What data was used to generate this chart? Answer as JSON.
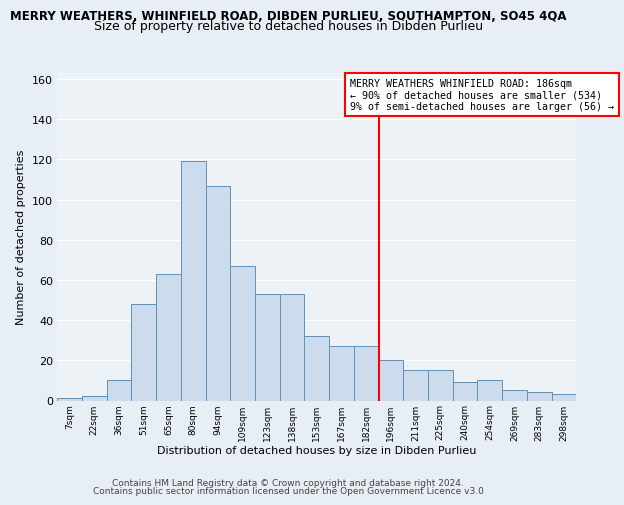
{
  "title": "MERRY WEATHERS, WHINFIELD ROAD, DIBDEN PURLIEU, SOUTHAMPTON, SO45 4QA",
  "subtitle": "Size of property relative to detached houses in Dibden Purlieu",
  "xlabel": "Distribution of detached houses by size in Dibden Purlieu",
  "ylabel": "Number of detached properties",
  "bin_labels": [
    "7sqm",
    "22sqm",
    "36sqm",
    "51sqm",
    "65sqm",
    "80sqm",
    "94sqm",
    "109sqm",
    "123sqm",
    "138sqm",
    "153sqm",
    "167sqm",
    "182sqm",
    "196sqm",
    "211sqm",
    "225sqm",
    "240sqm",
    "254sqm",
    "269sqm",
    "283sqm",
    "298sqm"
  ],
  "bar_values": [
    1,
    2,
    10,
    48,
    63,
    119,
    107,
    67,
    53,
    53,
    32,
    27,
    27,
    20,
    15,
    15,
    9,
    10,
    5,
    4,
    3
  ],
  "bar_color": "#ccdcec",
  "bar_edge_color": "#6090b8",
  "vline_color": "red",
  "annotation_text": "MERRY WEATHERS WHINFIELD ROAD: 186sqm\n← 90% of detached houses are smaller (534)\n9% of semi-detached houses are larger (56) →",
  "annotation_box_color": "white",
  "annotation_box_edge": "red",
  "ylim": [
    0,
    163
  ],
  "yticks": [
    0,
    20,
    40,
    60,
    80,
    100,
    120,
    140,
    160
  ],
  "footer1": "Contains HM Land Registry data © Crown copyright and database right 2024.",
  "footer2": "Contains public sector information licensed under the Open Government Licence v3.0",
  "bg_color": "#e8eef5",
  "plot_bg_color": "#edf2f7",
  "grid_color": "white",
  "title_fontsize": 8.5,
  "subtitle_fontsize": 9.0,
  "footer_fontsize": 6.5
}
